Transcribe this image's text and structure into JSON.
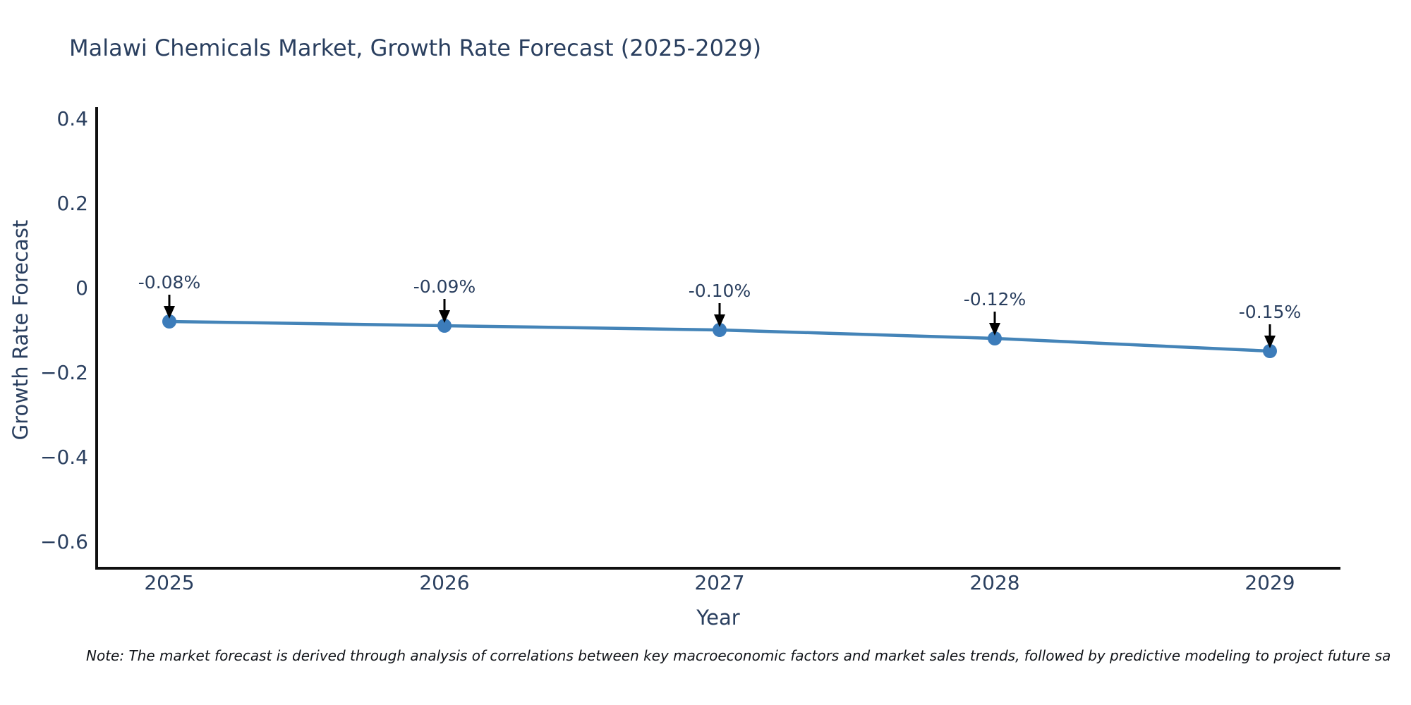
{
  "chart_data": {
    "type": "line",
    "title": "Malawi Chemicals Market, Growth Rate Forecast (2025-2029)",
    "xlabel": "Year",
    "ylabel": "Growth Rate Forecast",
    "categories": [
      "2025",
      "2026",
      "2027",
      "2028",
      "2029"
    ],
    "values": [
      -0.08,
      -0.09,
      -0.1,
      -0.12,
      -0.15
    ],
    "point_labels": [
      "-0.08%",
      "-0.09%",
      "-0.10%",
      "-0.12%",
      "-0.15%"
    ],
    "y_ticks": [
      0.4,
      0.2,
      0,
      -0.2,
      -0.4,
      -0.6
    ],
    "y_tick_labels": [
      "0.4",
      "0.2",
      "0",
      "−0.2",
      "−0.4",
      "−0.6"
    ],
    "ylim": [
      -0.66,
      0.43
    ],
    "grid": false,
    "legend": false,
    "colors": {
      "line": "#4484b8",
      "marker": "#3c7cba",
      "axis": "#101010",
      "text": "#2a3f5f",
      "annotation_arrow": "#000000"
    }
  },
  "note": {
    "text": "Note: The market forecast is derived through analysis of correlations between key macroeconomic factors and market sales trends, followed by predictive modeling to project future sa"
  }
}
